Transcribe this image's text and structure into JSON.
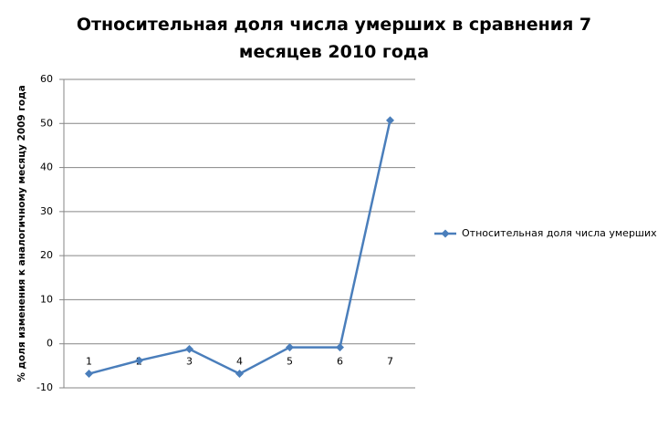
{
  "chart_data": {
    "type": "line",
    "title": "Относительная доля числа умерших в сравнения 7 месяцев 2010 года",
    "y_label": "% доля изменения к аналогичному месяцу 2009 года",
    "categories": [
      "1",
      "2",
      "3",
      "4",
      "5",
      "6",
      "7"
    ],
    "series": [
      {
        "name": "Относительная доля числа умерших",
        "color": "#4a7ebb",
        "values": [
          -6.8,
          -3.8,
          -1.2,
          -6.8,
          -0.8,
          -0.8,
          50.7
        ]
      }
    ],
    "ylim": [
      -10,
      60
    ],
    "yticks": [
      -10,
      0,
      10,
      20,
      30,
      40,
      50,
      60
    ],
    "grid": true,
    "legend": "right"
  }
}
